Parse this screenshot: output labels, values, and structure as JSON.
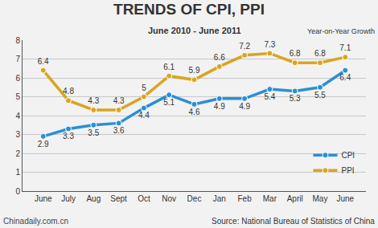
{
  "chart_data": {
    "type": "line",
    "title": "TRENDS OF CPI, PPI",
    "subtitle": "June 2010 - June 2011",
    "annotations": [
      "Year-on-Year Growth",
      "Chinadaily.com.cn",
      "Source: National Bureau of Statistics of China"
    ],
    "categories": [
      "June",
      "July",
      "Aug",
      "Sept",
      "Oct",
      "Nov",
      "Dec",
      "Jan",
      "Feb",
      "Mar",
      "April",
      "May",
      "June"
    ],
    "series": [
      {
        "name": "CPI",
        "color": "#2a8fd6",
        "values": [
          2.9,
          3.3,
          3.5,
          3.6,
          4.4,
          5.1,
          4.6,
          4.9,
          4.9,
          5.4,
          5.3,
          5.5,
          6.4
        ]
      },
      {
        "name": "PPI",
        "color": "#d9a521",
        "values": [
          6.4,
          4.8,
          4.3,
          4.3,
          5,
          6.1,
          5.9,
          6.6,
          7.2,
          7.3,
          6.8,
          6.8,
          7.1
        ]
      }
    ],
    "ylim": [
      0,
      8
    ],
    "yticks": [
      0,
      1,
      2,
      3,
      4,
      5,
      6,
      7,
      8
    ],
    "grid": true,
    "legend": "lower right",
    "data_labels": true,
    "marker": "circle"
  }
}
